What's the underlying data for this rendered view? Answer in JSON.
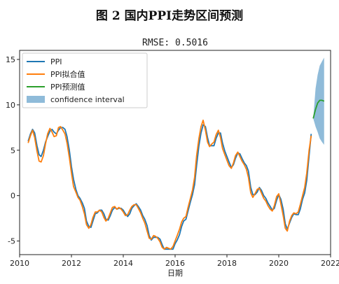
{
  "figure": {
    "caption": "图 2  国内PPI走势区间预测"
  },
  "chart_data": {
    "type": "line",
    "title": "RMSE: 0.5016",
    "xlabel": "日期",
    "ylabel": "",
    "xlim": [
      2010,
      2022
    ],
    "ylim": [
      -6.5,
      16
    ],
    "x_ticks": [
      2010,
      2012,
      2014,
      2016,
      2018,
      2020,
      2022
    ],
    "y_ticks": [
      -5,
      0,
      5,
      10,
      15
    ],
    "grid": false,
    "legend_position": "top-left",
    "series": [
      {
        "name": "PPI",
        "color": "#1f77b4",
        "points": [
          [
            2010.33,
            6.0
          ],
          [
            2010.42,
            6.8
          ],
          [
            2010.5,
            7.3
          ],
          [
            2010.58,
            6.9
          ],
          [
            2010.67,
            5.5
          ],
          [
            2010.75,
            4.5
          ],
          [
            2010.83,
            4.3
          ],
          [
            2010.92,
            5.0
          ],
          [
            2011.0,
            5.9
          ],
          [
            2011.08,
            6.5
          ],
          [
            2011.17,
            7.1
          ],
          [
            2011.25,
            7.3
          ],
          [
            2011.33,
            7.0
          ],
          [
            2011.42,
            6.8
          ],
          [
            2011.5,
            7.2
          ],
          [
            2011.58,
            7.5
          ],
          [
            2011.67,
            7.5
          ],
          [
            2011.75,
            7.3
          ],
          [
            2011.83,
            6.5
          ],
          [
            2011.92,
            5.0
          ],
          [
            2012.0,
            3.2
          ],
          [
            2012.08,
            1.8
          ],
          [
            2012.17,
            0.7
          ],
          [
            2012.25,
            0.0
          ],
          [
            2012.33,
            -0.3
          ],
          [
            2012.42,
            -0.8
          ],
          [
            2012.5,
            -1.4
          ],
          [
            2012.58,
            -2.8
          ],
          [
            2012.67,
            -3.4
          ],
          [
            2012.75,
            -3.5
          ],
          [
            2012.83,
            -2.8
          ],
          [
            2012.92,
            -2.0
          ],
          [
            2013.0,
            -1.9
          ],
          [
            2013.08,
            -1.6
          ],
          [
            2013.17,
            -1.6
          ],
          [
            2013.25,
            -2.0
          ],
          [
            2013.33,
            -2.6
          ],
          [
            2013.42,
            -2.7
          ],
          [
            2013.5,
            -2.2
          ],
          [
            2013.58,
            -1.6
          ],
          [
            2013.67,
            -1.3
          ],
          [
            2013.75,
            -1.5
          ],
          [
            2013.83,
            -1.4
          ],
          [
            2013.92,
            -1.4
          ],
          [
            2014.0,
            -1.6
          ],
          [
            2014.08,
            -2.0
          ],
          [
            2014.17,
            -2.3
          ],
          [
            2014.25,
            -2.0
          ],
          [
            2014.33,
            -1.4
          ],
          [
            2014.42,
            -1.1
          ],
          [
            2014.5,
            -0.9
          ],
          [
            2014.58,
            -1.2
          ],
          [
            2014.67,
            -1.6
          ],
          [
            2014.75,
            -2.2
          ],
          [
            2014.83,
            -2.6
          ],
          [
            2014.92,
            -3.3
          ],
          [
            2015.0,
            -4.4
          ],
          [
            2015.08,
            -4.9
          ],
          [
            2015.17,
            -4.6
          ],
          [
            2015.25,
            -4.6
          ],
          [
            2015.33,
            -4.6
          ],
          [
            2015.42,
            -4.8
          ],
          [
            2015.5,
            -5.4
          ],
          [
            2015.58,
            -5.9
          ],
          [
            2015.67,
            -5.9
          ],
          [
            2015.75,
            -5.9
          ],
          [
            2015.83,
            -5.9
          ],
          [
            2015.92,
            -5.9
          ],
          [
            2016.0,
            -5.3
          ],
          [
            2016.08,
            -4.9
          ],
          [
            2016.17,
            -4.3
          ],
          [
            2016.25,
            -3.4
          ],
          [
            2016.33,
            -2.8
          ],
          [
            2016.42,
            -2.6
          ],
          [
            2016.5,
            -1.7
          ],
          [
            2016.58,
            -0.8
          ],
          [
            2016.67,
            0.1
          ],
          [
            2016.75,
            1.2
          ],
          [
            2016.83,
            3.3
          ],
          [
            2016.92,
            5.5
          ],
          [
            2017.0,
            6.9
          ],
          [
            2017.08,
            7.8
          ],
          [
            2017.17,
            7.6
          ],
          [
            2017.25,
            6.4
          ],
          [
            2017.33,
            5.5
          ],
          [
            2017.42,
            5.5
          ],
          [
            2017.5,
            5.5
          ],
          [
            2017.58,
            6.3
          ],
          [
            2017.67,
            6.9
          ],
          [
            2017.75,
            6.9
          ],
          [
            2017.83,
            5.8
          ],
          [
            2017.92,
            4.9
          ],
          [
            2018.0,
            4.3
          ],
          [
            2018.08,
            3.7
          ],
          [
            2018.17,
            3.1
          ],
          [
            2018.25,
            3.4
          ],
          [
            2018.33,
            4.1
          ],
          [
            2018.42,
            4.7
          ],
          [
            2018.5,
            4.6
          ],
          [
            2018.58,
            4.1
          ],
          [
            2018.67,
            3.6
          ],
          [
            2018.75,
            3.3
          ],
          [
            2018.83,
            2.7
          ],
          [
            2018.92,
            0.9
          ],
          [
            2019.0,
            0.1
          ],
          [
            2019.08,
            0.1
          ],
          [
            2019.17,
            0.4
          ],
          [
            2019.25,
            0.9
          ],
          [
            2019.33,
            0.6
          ],
          [
            2019.42,
            0.0
          ],
          [
            2019.5,
            -0.3
          ],
          [
            2019.58,
            -0.8
          ],
          [
            2019.67,
            -1.2
          ],
          [
            2019.75,
            -1.6
          ],
          [
            2019.83,
            -1.4
          ],
          [
            2019.92,
            -0.5
          ],
          [
            2020.0,
            0.1
          ],
          [
            2020.08,
            -0.4
          ],
          [
            2020.17,
            -1.5
          ],
          [
            2020.25,
            -3.1
          ],
          [
            2020.33,
            -3.7
          ],
          [
            2020.42,
            -3.0
          ],
          [
            2020.5,
            -2.4
          ],
          [
            2020.58,
            -2.0
          ],
          [
            2020.67,
            -2.1
          ],
          [
            2020.75,
            -2.1
          ],
          [
            2020.83,
            -1.5
          ],
          [
            2020.92,
            -0.4
          ],
          [
            2021.0,
            0.3
          ],
          [
            2021.08,
            1.7
          ],
          [
            2021.17,
            4.4
          ],
          [
            2021.25,
            6.8
          ]
        ]
      },
      {
        "name": "PPI拟合值",
        "color": "#ff7f0e",
        "points": [
          [
            2010.33,
            5.8
          ],
          [
            2010.42,
            6.6
          ],
          [
            2010.5,
            7.2
          ],
          [
            2010.58,
            6.4
          ],
          [
            2010.67,
            4.9
          ],
          [
            2010.75,
            3.8
          ],
          [
            2010.83,
            3.7
          ],
          [
            2010.92,
            4.4
          ],
          [
            2011.0,
            5.7
          ],
          [
            2011.08,
            6.8
          ],
          [
            2011.17,
            7.4
          ],
          [
            2011.25,
            7.0
          ],
          [
            2011.33,
            6.5
          ],
          [
            2011.42,
            6.6
          ],
          [
            2011.5,
            7.5
          ],
          [
            2011.58,
            7.6
          ],
          [
            2011.67,
            7.2
          ],
          [
            2011.75,
            6.8
          ],
          [
            2011.83,
            5.8
          ],
          [
            2011.92,
            4.2
          ],
          [
            2012.0,
            2.5
          ],
          [
            2012.08,
            1.0
          ],
          [
            2012.17,
            0.4
          ],
          [
            2012.25,
            -0.2
          ],
          [
            2012.33,
            -0.5
          ],
          [
            2012.42,
            -1.2
          ],
          [
            2012.5,
            -2.0
          ],
          [
            2012.58,
            -3.2
          ],
          [
            2012.67,
            -3.6
          ],
          [
            2012.75,
            -3.2
          ],
          [
            2012.83,
            -2.4
          ],
          [
            2012.92,
            -1.8
          ],
          [
            2013.0,
            -1.8
          ],
          [
            2013.08,
            -1.6
          ],
          [
            2013.17,
            -1.8
          ],
          [
            2013.25,
            -2.4
          ],
          [
            2013.33,
            -2.8
          ],
          [
            2013.42,
            -2.5
          ],
          [
            2013.5,
            -1.9
          ],
          [
            2013.58,
            -1.3
          ],
          [
            2013.67,
            -1.2
          ],
          [
            2013.75,
            -1.5
          ],
          [
            2013.83,
            -1.3
          ],
          [
            2013.92,
            -1.5
          ],
          [
            2014.0,
            -1.8
          ],
          [
            2014.08,
            -2.2
          ],
          [
            2014.17,
            -2.1
          ],
          [
            2014.25,
            -1.6
          ],
          [
            2014.33,
            -1.2
          ],
          [
            2014.42,
            -1.0
          ],
          [
            2014.5,
            -1.0
          ],
          [
            2014.58,
            -1.4
          ],
          [
            2014.67,
            -1.9
          ],
          [
            2014.75,
            -2.5
          ],
          [
            2014.83,
            -3.0
          ],
          [
            2014.92,
            -3.9
          ],
          [
            2015.0,
            -4.7
          ],
          [
            2015.08,
            -4.8
          ],
          [
            2015.17,
            -4.4
          ],
          [
            2015.25,
            -4.5
          ],
          [
            2015.33,
            -4.7
          ],
          [
            2015.42,
            -5.1
          ],
          [
            2015.5,
            -5.7
          ],
          [
            2015.58,
            -5.9
          ],
          [
            2015.67,
            -5.7
          ],
          [
            2015.75,
            -5.8
          ],
          [
            2015.83,
            -5.9
          ],
          [
            2015.92,
            -5.6
          ],
          [
            2016.0,
            -5.0
          ],
          [
            2016.08,
            -4.4
          ],
          [
            2016.17,
            -3.7
          ],
          [
            2016.25,
            -2.9
          ],
          [
            2016.33,
            -2.5
          ],
          [
            2016.42,
            -2.3
          ],
          [
            2016.5,
            -1.3
          ],
          [
            2016.58,
            -0.4
          ],
          [
            2016.67,
            0.6
          ],
          [
            2016.75,
            2.0
          ],
          [
            2016.83,
            4.4
          ],
          [
            2016.92,
            6.3
          ],
          [
            2017.0,
            7.6
          ],
          [
            2017.08,
            8.3
          ],
          [
            2017.17,
            7.2
          ],
          [
            2017.25,
            5.9
          ],
          [
            2017.33,
            5.4
          ],
          [
            2017.42,
            5.7
          ],
          [
            2017.5,
            5.9
          ],
          [
            2017.58,
            6.7
          ],
          [
            2017.67,
            7.2
          ],
          [
            2017.75,
            6.4
          ],
          [
            2017.83,
            5.2
          ],
          [
            2017.92,
            4.5
          ],
          [
            2018.0,
            3.9
          ],
          [
            2018.08,
            3.3
          ],
          [
            2018.17,
            3.0
          ],
          [
            2018.25,
            3.6
          ],
          [
            2018.33,
            4.4
          ],
          [
            2018.42,
            4.8
          ],
          [
            2018.5,
            4.3
          ],
          [
            2018.58,
            3.8
          ],
          [
            2018.67,
            3.4
          ],
          [
            2018.75,
            2.9
          ],
          [
            2018.83,
            2.0
          ],
          [
            2018.92,
            0.3
          ],
          [
            2019.0,
            -0.2
          ],
          [
            2019.08,
            0.2
          ],
          [
            2019.17,
            0.7
          ],
          [
            2019.25,
            0.8
          ],
          [
            2019.33,
            0.3
          ],
          [
            2019.42,
            -0.3
          ],
          [
            2019.5,
            -0.6
          ],
          [
            2019.58,
            -1.1
          ],
          [
            2019.67,
            -1.5
          ],
          [
            2019.75,
            -1.7
          ],
          [
            2019.83,
            -1.1
          ],
          [
            2019.92,
            -0.1
          ],
          [
            2020.0,
            0.2
          ],
          [
            2020.08,
            -0.9
          ],
          [
            2020.17,
            -2.2
          ],
          [
            2020.25,
            -3.6
          ],
          [
            2020.33,
            -3.9
          ],
          [
            2020.42,
            -2.8
          ],
          [
            2020.5,
            -2.2
          ],
          [
            2020.58,
            -1.9
          ],
          [
            2020.67,
            -2.0
          ],
          [
            2020.75,
            -1.8
          ],
          [
            2020.83,
            -1.0
          ],
          [
            2020.92,
            0.0
          ],
          [
            2021.0,
            0.9
          ],
          [
            2021.08,
            2.5
          ],
          [
            2021.17,
            5.0
          ],
          [
            2021.25,
            6.6
          ]
        ]
      },
      {
        "name": "PPI预测值",
        "color": "#2ca02c",
        "points": [
          [
            2021.33,
            8.5
          ],
          [
            2021.42,
            9.5
          ],
          [
            2021.5,
            10.2
          ],
          [
            2021.58,
            10.5
          ],
          [
            2021.67,
            10.5
          ],
          [
            2021.75,
            10.4
          ]
        ]
      }
    ],
    "confidence_interval": {
      "name": "confidence interval",
      "color": "#1f77b4",
      "opacity": 0.5,
      "points": [
        [
          2021.33,
          8.5,
          8.5
        ],
        [
          2021.42,
          7.6,
          11.8
        ],
        [
          2021.5,
          7.0,
          13.3
        ],
        [
          2021.58,
          6.3,
          14.3
        ],
        [
          2021.67,
          5.9,
          14.8
        ],
        [
          2021.75,
          5.6,
          15.2
        ]
      ]
    }
  }
}
